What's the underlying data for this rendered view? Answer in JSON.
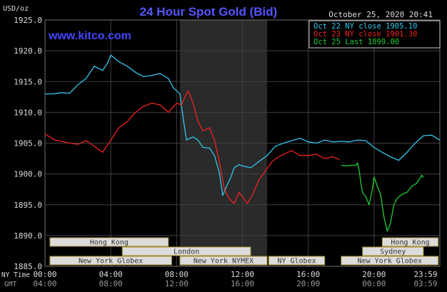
{
  "chart_data": {
    "type": "line",
    "title": "24 Hour Spot Gold (Bid)",
    "site": "www.kitco.com",
    "timestamp": "October 25, 2020 20:41",
    "unit_label": "USD/oz",
    "ylim": [
      1885.0,
      1925.0
    ],
    "yticks": [
      "1925.0",
      "1920.0",
      "1915.0",
      "1910.0",
      "1905.0",
      "1900.0",
      "1895.0",
      "1890.0",
      "1885.0"
    ],
    "ytick_values": [
      1925,
      1920,
      1915,
      1910,
      1905,
      1900,
      1895,
      1890,
      1885
    ],
    "x_range_hours": [
      0,
      24
    ],
    "x_ticks_hours": [
      0,
      4,
      8,
      12,
      16,
      20,
      24
    ],
    "x_row1_label": "NY Time",
    "x_row2_label": "GMT",
    "x_row1_ticks": [
      "00:00",
      "04:00",
      "08:00",
      "12:00",
      "16:00",
      "20:00",
      "23:59"
    ],
    "x_row2_ticks": [
      "04:00",
      "08:00",
      "12:00",
      "16:00",
      "20:00",
      "00:00",
      "03:59"
    ],
    "shaded_session_hours": [
      8.2,
      13.5
    ],
    "grid": true,
    "legend_position": "top-right",
    "series": [
      {
        "name": "Oct 22 NY close 1905.10",
        "color": "#33c6ee",
        "x": [
          0,
          0.5,
          1,
          1.5,
          2,
          2.5,
          3,
          3.5,
          3.8,
          4,
          4.5,
          5,
          5.5,
          6,
          6.5,
          7,
          7.5,
          7.8,
          8,
          8.2,
          8.4,
          8.6,
          8.8,
          9,
          9.3,
          9.6,
          10,
          10.3,
          10.6,
          10.8,
          11,
          11.3,
          11.5,
          11.8,
          12,
          12.5,
          13,
          13.5,
          14,
          14.5,
          15,
          15.5,
          16,
          16.5,
          17,
          17.5,
          18,
          18.5,
          19,
          19.5,
          20,
          20.5,
          21,
          21.5,
          22,
          22.5,
          23,
          23.5,
          23.99
        ],
        "values": [
          1913.0,
          1913.0,
          1913.2,
          1913.1,
          1914.5,
          1915.5,
          1917.5,
          1916.8,
          1918.0,
          1919.3,
          1918.2,
          1917.5,
          1916.5,
          1915.8,
          1916.0,
          1916.3,
          1915.5,
          1914.0,
          1913.5,
          1913.0,
          1909.0,
          1905.5,
          1905.8,
          1906.0,
          1905.5,
          1904.3,
          1904.2,
          1903.0,
          1900.2,
          1896.5,
          1897.8,
          1899.5,
          1901.0,
          1901.5,
          1901.3,
          1901.0,
          1902.0,
          1903.0,
          1904.5,
          1905.0,
          1905.4,
          1905.8,
          1905.2,
          1905.0,
          1905.5,
          1905.2,
          1905.3,
          1905.2,
          1905.5,
          1905.4,
          1904.3,
          1903.5,
          1902.8,
          1902.2,
          1903.5,
          1905.0,
          1906.2,
          1906.3,
          1905.5
        ]
      },
      {
        "name": "Oct 23 NY close 1901.30",
        "color": "#ee2222",
        "x": [
          0,
          0.3,
          0.6,
          1,
          1.5,
          2,
          2.5,
          3,
          3.5,
          4,
          4.5,
          5,
          5.5,
          6,
          6.5,
          7,
          7.5,
          8,
          8.3,
          8.5,
          8.7,
          9,
          9.3,
          9.6,
          10,
          10.3,
          10.6,
          10.9,
          11.2,
          11.5,
          11.8,
          12,
          12.3,
          12.6,
          13,
          13.4,
          13.8,
          14.2,
          14.6,
          15,
          15.5,
          16,
          16.5,
          17,
          17.5,
          17.9
        ],
        "values": [
          1906.5,
          1906.0,
          1905.5,
          1905.3,
          1905.0,
          1904.8,
          1905.4,
          1904.5,
          1903.5,
          1905.5,
          1907.5,
          1908.5,
          1910.0,
          1911.0,
          1911.5,
          1911.2,
          1910.0,
          1911.5,
          1911.2,
          1912.5,
          1913.5,
          1911.5,
          1908.5,
          1907.0,
          1907.5,
          1905.5,
          1902.0,
          1897.5,
          1896.0,
          1895.2,
          1897.0,
          1896.3,
          1895.2,
          1896.5,
          1899.0,
          1900.5,
          1902.0,
          1902.8,
          1903.3,
          1903.8,
          1903.0,
          1903.0,
          1903.2,
          1902.5,
          1902.8,
          1902.3
        ]
      },
      {
        "name": "Oct 25 Last 1899.00",
        "color": "#22cc33",
        "x": [
          18,
          18.3,
          18.6,
          18.9,
          19.0,
          19.1,
          19.2,
          19.3,
          19.5,
          19.7,
          19.9,
          20.0,
          20.2,
          20.4,
          20.6,
          20.8,
          21.0,
          21.2,
          21.4,
          21.7,
          22.0,
          22.3,
          22.6,
          22.9,
          23.0
        ],
        "values": [
          1901.4,
          1901.3,
          1901.4,
          1901.4,
          1901.8,
          1900.5,
          1898.5,
          1897.0,
          1896.3,
          1895.0,
          1897.5,
          1899.5,
          1898.0,
          1896.7,
          1893.0,
          1890.7,
          1892.0,
          1895.0,
          1896.0,
          1896.7,
          1897.0,
          1898.0,
          1898.5,
          1899.8,
          1899.4
        ]
      }
    ],
    "sessions": [
      {
        "label": "Hong Kong",
        "start": 0.3,
        "end": 7.5,
        "row": 0
      },
      {
        "label": "London",
        "start": 4.7,
        "end": 12.5,
        "row": 1
      },
      {
        "label": "New York Globex",
        "start": 0.3,
        "end": 7.7,
        "row": 2
      },
      {
        "label": "New York NYMEX",
        "start": 8.2,
        "end": 13.5,
        "row": 2
      },
      {
        "label": "NY Globex",
        "start": 13.6,
        "end": 17.0,
        "row": 2
      },
      {
        "label": "Hong Kong",
        "start": 20.5,
        "end": 23.9,
        "row": 0
      },
      {
        "label": "Sydney",
        "start": 19.3,
        "end": 23.0,
        "row": 1
      },
      {
        "label": "New York Globex",
        "start": 18.0,
        "end": 23.9,
        "row": 2
      }
    ]
  },
  "colors": {
    "background": "#000000",
    "plot_bg": "#000000",
    "shade": "#2a2a2a",
    "grid": "#3f3f3f",
    "title": "#5555ff",
    "text": "#dcdcdc",
    "session_box": "#dcdcdc",
    "session_border": "#a08a28"
  }
}
